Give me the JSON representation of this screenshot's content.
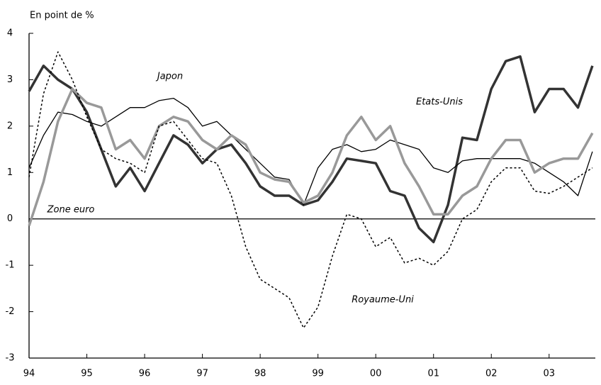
{
  "chart_data": {
    "type": "line",
    "subtitle": "En point de %",
    "x": [
      1994.0,
      1994.25,
      1994.5,
      1994.75,
      1995.0,
      1995.25,
      1995.5,
      1995.75,
      1996.0,
      1996.25,
      1996.5,
      1996.75,
      1997.0,
      1997.25,
      1997.5,
      1997.75,
      1998.0,
      1998.25,
      1998.5,
      1998.75,
      1999.0,
      1999.25,
      1999.5,
      1999.75,
      2000.0,
      2000.25,
      2000.5,
      2000.75,
      2001.0,
      2001.25,
      2001.5,
      2001.75,
      2002.0,
      2002.25,
      2002.5,
      2002.75,
      2003.0,
      2003.25,
      2003.5,
      2003.75
    ],
    "series": [
      {
        "name": "Etats-Unis",
        "color": "#333333",
        "width": 3.5,
        "dash": "solid",
        "values": [
          2.75,
          3.3,
          3.0,
          2.8,
          2.3,
          1.5,
          0.7,
          1.1,
          0.6,
          1.2,
          1.8,
          1.6,
          1.2,
          1.5,
          1.6,
          1.2,
          0.7,
          0.5,
          0.5,
          0.3,
          0.4,
          0.8,
          1.3,
          1.25,
          1.2,
          0.6,
          0.5,
          -0.2,
          -0.5,
          0.3,
          1.75,
          1.7,
          2.8,
          3.4,
          3.5,
          2.3,
          2.8,
          2.8,
          2.4,
          3.3
        ]
      },
      {
        "name": "Japon",
        "color": "#000000",
        "width": 1.3,
        "dash": "solid",
        "values": [
          1.1,
          1.8,
          2.3,
          2.25,
          2.1,
          2.0,
          2.2,
          2.4,
          2.4,
          2.55,
          2.6,
          2.4,
          2.0,
          2.1,
          1.8,
          1.5,
          1.2,
          0.9,
          0.85,
          0.3,
          1.1,
          1.5,
          1.6,
          1.45,
          1.5,
          1.7,
          1.6,
          1.5,
          1.1,
          1.0,
          1.25,
          1.3,
          1.3,
          1.3,
          1.3,
          1.2,
          1.0,
          0.8,
          0.5,
          1.45
        ]
      },
      {
        "name": "Zone euro",
        "color": "#999999",
        "width": 3.5,
        "dash": "solid",
        "values": [
          -0.15,
          0.8,
          2.1,
          2.8,
          2.5,
          2.4,
          1.5,
          1.7,
          1.3,
          2.0,
          2.2,
          2.1,
          1.7,
          1.5,
          1.8,
          1.6,
          1.0,
          0.85,
          0.8,
          0.35,
          0.5,
          1.0,
          1.8,
          2.2,
          1.7,
          2.0,
          1.2,
          0.7,
          0.1,
          0.1,
          0.5,
          0.7,
          1.3,
          1.7,
          1.7,
          1.0,
          1.2,
          1.3,
          1.3,
          1.85
        ]
      },
      {
        "name": "Royaume-Uni",
        "color": "#000000",
        "width": 1.5,
        "dash": "dotted",
        "values": [
          0.9,
          2.7,
          3.6,
          3.0,
          2.2,
          1.5,
          1.3,
          1.2,
          1.0,
          2.0,
          2.1,
          1.7,
          1.3,
          1.2,
          0.5,
          -0.6,
          -1.3,
          -1.5,
          -1.7,
          -2.35,
          -1.9,
          -0.8,
          0.1,
          0.0,
          -0.6,
          -0.4,
          -0.95,
          -0.85,
          -1.0,
          -0.7,
          0.0,
          0.2,
          0.8,
          1.1,
          1.1,
          0.6,
          0.55,
          0.7,
          0.9,
          1.1
        ]
      }
    ],
    "xlim": [
      1994,
      2003.8
    ],
    "xticks": [
      {
        "value": 1994,
        "label": "94"
      },
      {
        "value": 1995,
        "label": "95"
      },
      {
        "value": 1996,
        "label": "96"
      },
      {
        "value": 1997,
        "label": "97"
      },
      {
        "value": 1998,
        "label": "98"
      },
      {
        "value": 1999,
        "label": "99"
      },
      {
        "value": 2000,
        "label": "00"
      },
      {
        "value": 2001,
        "label": "01"
      },
      {
        "value": 2002,
        "label": "02"
      },
      {
        "value": 2003,
        "label": "03"
      }
    ],
    "ylim": [
      -3,
      4
    ],
    "yticks": [
      -3,
      -2,
      -1,
      0,
      1,
      2,
      3,
      4
    ]
  }
}
